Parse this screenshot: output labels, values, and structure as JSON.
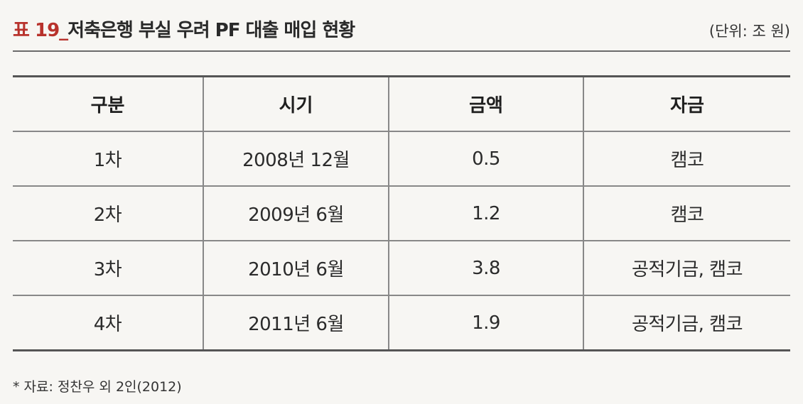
{
  "header": {
    "table_number": "표 19_",
    "title": "저축은행 부실 우려 PF 대출 매입 현황",
    "unit": "(단위: 조 원)"
  },
  "table": {
    "columns": [
      "구분",
      "시기",
      "금액",
      "자금"
    ],
    "rows": [
      [
        "1차",
        "2008년 12월",
        "0.5",
        "캠코"
      ],
      [
        "2차",
        "2009년 6월",
        "1.2",
        "캠코"
      ],
      [
        "3차",
        "2010년 6월",
        "3.8",
        "공적기금, 캠코"
      ],
      [
        "4차",
        "2011년 6월",
        "1.9",
        "공적기금, 캠코"
      ]
    ]
  },
  "footer": {
    "source": "* 자료: 정찬우 외 2인(2012)"
  },
  "colors": {
    "table_number": "#b8322c",
    "rule": "#555555"
  }
}
